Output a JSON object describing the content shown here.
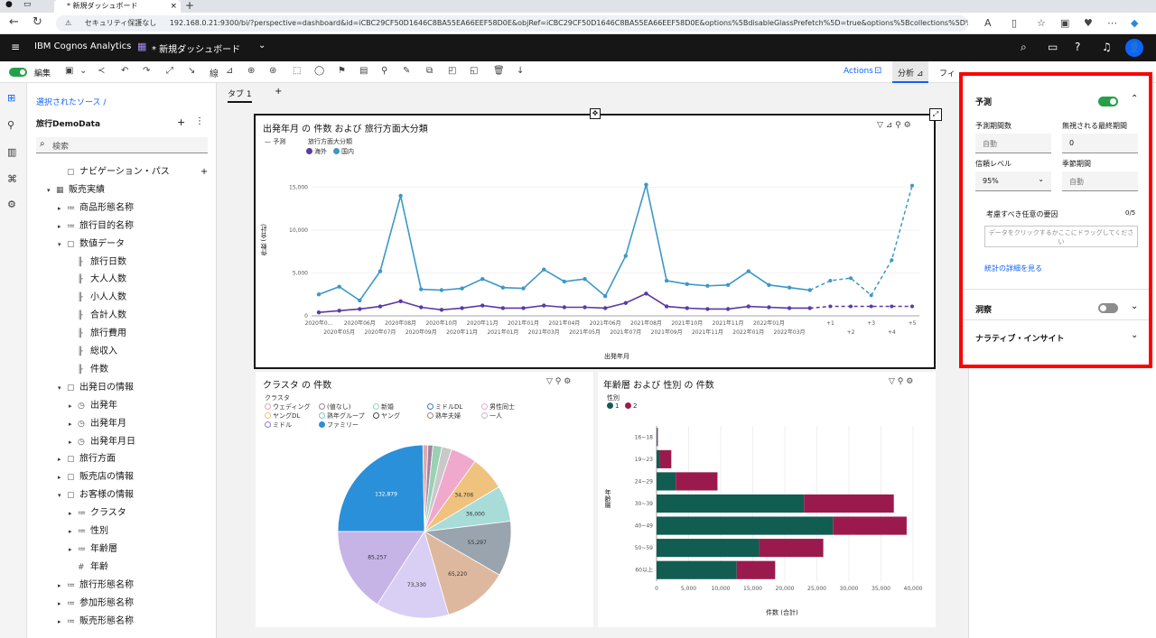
{
  "browser": {
    "tab_title": "* 新規ダッシュボード",
    "tab_close": "×",
    "new_tab": "+",
    "security": "セキュリティ保護なし",
    "url": "192.168.0.21:9300/bi/?perspective=dashboard&id=iCBC29CF50D1646C8BA55EA66EEF58D0E&objRef=iCBC29CF50D1646C8BA55EA66EEF58D0E&options%5BdisableGlassPrefetch%5D=true&options%5Bcollections%5D%5Bcanva..."
  },
  "app": {
    "brand": "IBM Cognos Analytics",
    "dashboard_title": "* 新規ダッシュボード",
    "avatar": "👤"
  },
  "toolbar": {
    "edit_label": "編集",
    "actions_label": "Actions",
    "analysis_label": "分析",
    "filter_label": "フィ"
  },
  "sources": {
    "breadcrumb": "選択されたソース /",
    "name": "旅行DemoData",
    "search_placeholder": "検索",
    "tree": [
      {
        "label": "ナビゲーション・パス",
        "level": 1,
        "twisty": "",
        "icon": "▢",
        "plus": "+"
      },
      {
        "label": "販売実績",
        "level": 0,
        "twisty": "▾",
        "icon": "▦"
      },
      {
        "label": "商品形態名称",
        "level": 1,
        "twisty": "▸",
        "icon": "≔"
      },
      {
        "label": "旅行目的名称",
        "level": 1,
        "twisty": "▸",
        "icon": "≔"
      },
      {
        "label": "数値データ",
        "level": 1,
        "twisty": "▾",
        "icon": "▢"
      },
      {
        "label": "旅行日数",
        "level": 2,
        "twisty": "",
        "icon": "╟"
      },
      {
        "label": "大人人数",
        "level": 2,
        "twisty": "",
        "icon": "╟"
      },
      {
        "label": "小人人数",
        "level": 2,
        "twisty": "",
        "icon": "╟"
      },
      {
        "label": "合計人数",
        "level": 2,
        "twisty": "",
        "icon": "╟"
      },
      {
        "label": "旅行費用",
        "level": 2,
        "twisty": "",
        "icon": "╟"
      },
      {
        "label": "総収入",
        "level": 2,
        "twisty": "",
        "icon": "╟"
      },
      {
        "label": "件数",
        "level": 2,
        "twisty": "",
        "icon": "╟"
      },
      {
        "label": "出発日の情報",
        "level": 1,
        "twisty": "▾",
        "icon": "▢"
      },
      {
        "label": "出発年",
        "level": 2,
        "twisty": "▸",
        "icon": "◷"
      },
      {
        "label": "出発年月",
        "level": 2,
        "twisty": "▸",
        "icon": "◷"
      },
      {
        "label": "出発年月日",
        "level": 2,
        "twisty": "▸",
        "icon": "◷"
      },
      {
        "label": "旅行方面",
        "level": 1,
        "twisty": "▸",
        "icon": "▢"
      },
      {
        "label": "販売店の情報",
        "level": 1,
        "twisty": "▸",
        "icon": "▢"
      },
      {
        "label": "お客様の情報",
        "level": 1,
        "twisty": "▾",
        "icon": "▢"
      },
      {
        "label": "クラスタ",
        "level": 2,
        "twisty": "▸",
        "icon": "≔"
      },
      {
        "label": "性別",
        "level": 2,
        "twisty": "▸",
        "icon": "≔"
      },
      {
        "label": "年齢層",
        "level": 2,
        "twisty": "▸",
        "icon": "≔"
      },
      {
        "label": "年齢",
        "level": 2,
        "twisty": "",
        "icon": "#"
      },
      {
        "label": "旅行形態名称",
        "level": 1,
        "twisty": "▸",
        "icon": "≔"
      },
      {
        "label": "参加形態名称",
        "level": 1,
        "twisty": "▸",
        "icon": "≔"
      },
      {
        "label": "販売形態名称",
        "level": 1,
        "twisty": "▸",
        "icon": "≔"
      }
    ]
  },
  "canvas": {
    "tab_label": "タブ 1",
    "tab_add": "+"
  },
  "line_widget": {
    "title": "出発年月 の 件数 および 旅行方面大分類",
    "forecast_legend": "— 予測",
    "legend_title": "旅行方面大分類",
    "ylabel": "件数 (合計)",
    "xlabel": "出発年月"
  },
  "cluster_widget": {
    "title": "クラスタ の 件数",
    "legend_title": "クラスタ"
  },
  "age_widget": {
    "title": "年齢層 および 性別 の 件数",
    "legend_title": "性別",
    "ylabel": "年齢層",
    "xlabel": "件数 (合計)"
  },
  "colors": {
    "overseas": "#5b3aa5",
    "domestic": "#3c98c7",
    "male": "#115d52",
    "female": "#9b1a4d",
    "accent": "#0f62fe",
    "red_highlight": "#ff0000"
  },
  "chart_data": [
    {
      "type": "line",
      "title": "出発年月 の 件数 および 旅行方面大分類",
      "xlabel": "出発年月",
      "ylabel": "件数 (合計)",
      "ylim": [
        0,
        16000
      ],
      "yticks": [
        "0",
        "5,000",
        "10,000",
        "15,000"
      ],
      "x_top": [
        "2020年0...",
        "2020年06月",
        "2020年08月",
        "2020年10月",
        "2020年11月",
        "2021年01月",
        "2021年04月",
        "2021年06月",
        "2021年08月",
        "2021年10月",
        "2021年11月",
        "2022年01月",
        "+1",
        "+3",
        "+5"
      ],
      "x_bottom": [
        "2020年05月",
        "2020年07月",
        "2020年09月",
        "2020年11月",
        "2021年01月",
        "2021年03月",
        "2021年05月",
        "2021年07月",
        "2021年09月",
        "2021年11月",
        "2022年01月",
        "2022年03月",
        "+2",
        "+4"
      ],
      "series": [
        {
          "name": "国内",
          "values": [
            2500,
            3400,
            1800,
            5200,
            14000,
            3100,
            3000,
            3200,
            4300,
            3300,
            3200,
            5400,
            4000,
            4300,
            2300,
            7000,
            15300,
            4100,
            3700,
            3500,
            3600,
            5200,
            3600,
            3300,
            3000
          ],
          "forecast": [
            4100,
            4400,
            2400,
            6500,
            15200
          ]
        },
        {
          "name": "海外",
          "values": [
            400,
            600,
            800,
            1100,
            1700,
            1000,
            700,
            900,
            1200,
            900,
            900,
            1200,
            1000,
            1000,
            900,
            1500,
            2600,
            1100,
            900,
            800,
            800,
            1100,
            1000,
            900,
            900
          ],
          "forecast": [
            1100,
            1100,
            1100,
            1100,
            1100
          ]
        }
      ],
      "legend_placement": "top-left"
    },
    {
      "type": "pie",
      "title": "クラスタ の 件数",
      "legend_title": "クラスタ",
      "legend": [
        {
          "name": "ウェディング",
          "color": "#e3a9a9"
        },
        {
          "name": "(値なし)",
          "color": "#a084a0"
        },
        {
          "name": "新婚",
          "color": "#9ad0b4"
        },
        {
          "name": "ミドルDL",
          "color": "#4b72c1"
        },
        {
          "name": "男性同士",
          "color": "#f0a8cc"
        },
        {
          "name": "ヤングDL",
          "color": "#efc27e"
        },
        {
          "name": "熟年グループ",
          "color": "#7cc6c4"
        },
        {
          "name": "ヤング",
          "color": "#4a4a4a"
        },
        {
          "name": "熟年夫婦",
          "color": "#a48a70"
        },
        {
          "name": "一人",
          "color": "#c1b4e6"
        },
        {
          "name": "ミドル",
          "color": "#8e7ad6"
        },
        {
          "name": "ファミリー",
          "color": "#2a90d9"
        }
      ],
      "slices": [
        {
          "name": "ファミリー",
          "value": 132879,
          "label": "132,879",
          "color": "#2a90d9"
        },
        {
          "name": "ウェディング",
          "value": 5000,
          "label": "",
          "color": "#e3a9a9"
        },
        {
          "name": "(値なし)",
          "value": 5000,
          "label": "",
          "color": "#a084a0"
        },
        {
          "name": "新婚",
          "value": 9000,
          "label": "",
          "color": "#9ad0b4"
        },
        {
          "name": "ミドルDL",
          "value": 10000,
          "label": "",
          "color": "#c9c9c9"
        },
        {
          "name": "男性同士",
          "value": 26000,
          "label": "",
          "color": "#f0a8cc"
        },
        {
          "name": "ヤングDL",
          "value": 34706,
          "label": "34,706",
          "color": "#efc27e"
        },
        {
          "name": "熟年グループ",
          "value": 36000,
          "label": "36,000",
          "color": "#a8dcd9"
        },
        {
          "name": "ヤング",
          "value": 55297,
          "label": "55,297",
          "color": "#9aa4ae"
        },
        {
          "name": "熟年夫婦",
          "value": 65220,
          "label": "65,220",
          "color": "#deb89e"
        },
        {
          "name": "一人",
          "value": 73330,
          "label": "73,330",
          "color": "#d9cef3"
        },
        {
          "name": "ミドル",
          "value": 85257,
          "label": "85,257",
          "color": "#c6b4e6"
        }
      ]
    },
    {
      "type": "bar",
      "orientation": "horizontal",
      "stacked": true,
      "title": "年齢層 および 性別 の 件数",
      "xlabel": "件数 (合計)",
      "ylabel": "年齢層",
      "xlim": [
        0,
        40000
      ],
      "xticks": [
        "0",
        "5,000",
        "10,000",
        "15,000",
        "20,000",
        "25,000",
        "30,000",
        "35,000",
        "40,000"
      ],
      "categories": [
        "16~18",
        "19~23",
        "24~29",
        "30~39",
        "40~49",
        "50~59",
        "60以上"
      ],
      "series": [
        {
          "name": "1",
          "values": [
            100,
            500,
            3000,
            23000,
            27500,
            16000,
            12500
          ]
        },
        {
          "name": "2",
          "values": [
            100,
            1800,
            6500,
            14000,
            11500,
            10000,
            6000
          ]
        }
      ],
      "legend_placement": "top-left"
    }
  ],
  "forecast_panel": {
    "title": "予測",
    "enabled": true,
    "periods_label": "予測期間数",
    "periods_value": "自動",
    "ignore_label": "無視される最終期間",
    "ignore_value": "0",
    "confidence_label": "信頼レベル",
    "confidence_value": "95%",
    "season_label": "季節期間",
    "season_value": "自動",
    "factors_label": "考慮すべき任意の要因",
    "factors_count": "0/5",
    "factors_placeholder": "データをクリックするかここにドラッグしてください",
    "details_link": "統計の詳細を見る"
  },
  "insight": {
    "title": "洞察",
    "enabled": false
  },
  "narrative": {
    "title": "ナラティブ・インサイト"
  }
}
